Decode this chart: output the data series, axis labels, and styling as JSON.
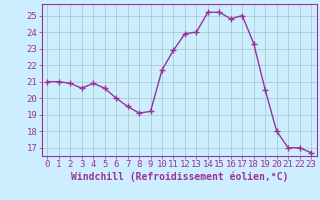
{
  "x": [
    0,
    1,
    2,
    3,
    4,
    5,
    6,
    7,
    8,
    9,
    10,
    11,
    12,
    13,
    14,
    15,
    16,
    17,
    18,
    19,
    20,
    21,
    22,
    23
  ],
  "y": [
    21.0,
    21.0,
    20.9,
    20.6,
    20.9,
    20.6,
    20.0,
    19.5,
    19.1,
    19.2,
    21.7,
    22.9,
    23.9,
    24.0,
    25.2,
    25.2,
    24.8,
    25.0,
    23.3,
    20.5,
    18.0,
    17.0,
    17.0,
    16.7
  ],
  "line_color": "#993399",
  "marker": "+",
  "markersize": 4,
  "linewidth": 1.0,
  "xlabel": "Windchill (Refroidissement éolien,°C)",
  "xlabel_fontsize": 7,
  "ylabel_ticks": [
    17,
    18,
    19,
    20,
    21,
    22,
    23,
    24,
    25
  ],
  "ylim": [
    16.5,
    25.7
  ],
  "xlim": [
    -0.5,
    23.5
  ],
  "xtick_labels": [
    "0",
    "1",
    "2",
    "3",
    "4",
    "5",
    "6",
    "7",
    "8",
    "9",
    "10",
    "11",
    "12",
    "13",
    "14",
    "15",
    "16",
    "17",
    "18",
    "19",
    "20",
    "21",
    "22",
    "23"
  ],
  "background_color": "#cceeff",
  "grid_color": "#aacccc",
  "tick_color": "#993399",
  "tick_fontsize": 6.5,
  "label_color": "#993399",
  "spine_color": "#993399"
}
